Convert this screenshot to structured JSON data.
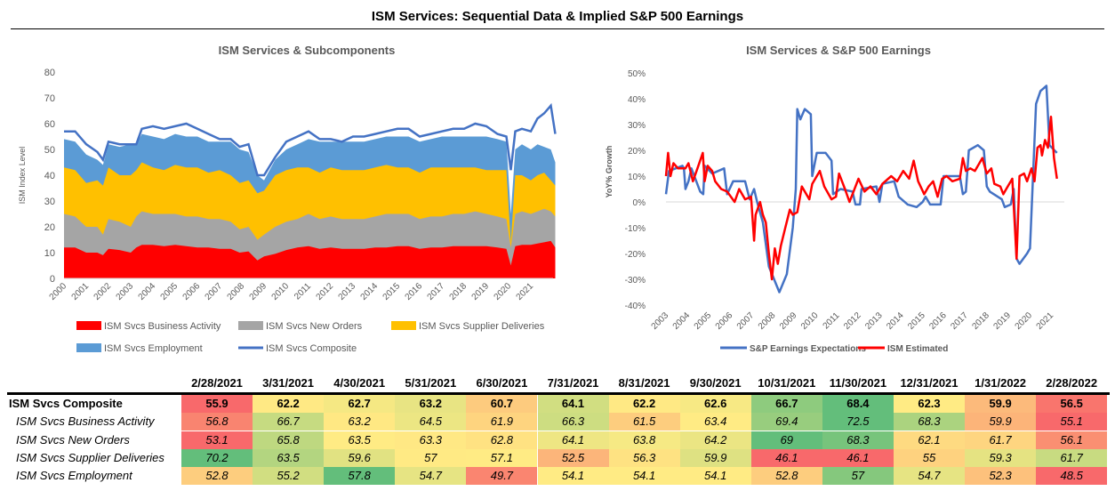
{
  "title": "ISM Services: Sequential Data & Implied S&P 500 Earnings",
  "chart_data": [
    {
      "type": "area",
      "stacked": true,
      "values_are_cumulative_stack_tops": true,
      "title": "ISM Services & Subcomponents",
      "ylabel": "ISM Index Level",
      "xlabel": "",
      "ylim": [
        0,
        80
      ],
      "yticks": [
        0,
        10,
        20,
        30,
        40,
        50,
        60,
        70,
        80
      ],
      "xticks": [
        "2000",
        "2001",
        "2002",
        "2003",
        "2004",
        "2005",
        "2006",
        "2007",
        "2008",
        "2009",
        "2010",
        "2011",
        "2012",
        "2013",
        "2014",
        "2015",
        "2016",
        "2017",
        "2018",
        "2019",
        "2020",
        "2021"
      ],
      "legend_position": "bottom",
      "x": [
        2000,
        2000.5,
        2001,
        2001.5,
        2001.75,
        2002,
        2002.5,
        2003,
        2003.25,
        2003.5,
        2004,
        2004.5,
        2005,
        2005.5,
        2006,
        2006.5,
        2007,
        2007.5,
        2007.9,
        2008.3,
        2008.7,
        2009,
        2009.5,
        2010,
        2010.5,
        2011,
        2011.5,
        2012,
        2012.5,
        2013,
        2013.5,
        2014,
        2014.5,
        2015,
        2015.5,
        2016,
        2016.5,
        2017,
        2017.5,
        2018,
        2018.5,
        2019,
        2019.5,
        2019.9,
        2020.1,
        2020.3,
        2020.6,
        2021,
        2021.3,
        2021.6,
        2021.9,
        2022.1
      ],
      "series": [
        {
          "name": "ISM Svcs Business Activity",
          "color": "#FF0000",
          "values": [
            12,
            12,
            10,
            10,
            9,
            11.5,
            11,
            10,
            12,
            13,
            13,
            12.5,
            13,
            12.5,
            12,
            12,
            11.5,
            11.5,
            10,
            10.5,
            7,
            8.5,
            9.5,
            11,
            12,
            12.5,
            11.5,
            12,
            11.5,
            11.5,
            11.5,
            12,
            12,
            12.5,
            12.5,
            11.5,
            12,
            12,
            12.5,
            12.5,
            12.5,
            12.5,
            12,
            11.5,
            5,
            12.5,
            13,
            13,
            13.5,
            14,
            14.5,
            12
          ]
        },
        {
          "name": "ISM Svcs New Orders",
          "color": "#A5A5A5",
          "values": [
            25,
            24,
            20,
            20,
            17,
            23,
            22,
            20,
            24,
            26,
            25,
            25,
            25,
            24,
            24,
            23,
            23,
            22,
            19,
            20,
            15,
            17,
            20,
            22,
            23,
            25,
            23,
            24,
            23,
            23,
            23,
            24,
            25,
            25,
            25,
            23,
            24,
            24,
            25,
            25,
            26,
            25,
            24,
            23,
            12,
            25,
            26,
            25,
            26,
            27,
            26,
            24
          ]
        },
        {
          "name": "ISM Svcs Supplier Deliveries",
          "color": "#FFC000",
          "values": [
            43,
            42,
            37,
            38,
            36,
            43,
            40,
            40,
            42,
            45,
            43,
            42,
            44,
            43,
            43,
            41,
            42,
            40,
            37,
            38,
            33,
            34,
            40,
            42,
            43,
            43,
            41,
            43,
            42,
            42,
            42,
            43,
            44,
            43,
            43,
            41,
            43,
            43,
            43,
            43,
            43,
            42,
            42,
            42,
            14,
            40,
            40,
            38,
            40,
            41,
            38,
            36
          ]
        },
        {
          "name": "ISM Svcs Employment",
          "color": "#5B9BD5",
          "values": [
            54,
            53,
            48,
            46,
            44,
            52,
            51,
            52,
            52,
            56,
            55,
            54,
            56,
            55,
            55,
            53,
            53,
            53,
            50,
            49,
            40,
            38,
            46,
            50,
            52,
            54,
            53,
            53,
            53,
            53,
            53,
            54,
            55,
            55,
            55,
            53,
            54,
            55,
            55,
            55,
            55,
            55,
            54,
            53,
            25,
            50,
            52,
            50,
            52,
            51,
            50,
            45
          ]
        },
        {
          "name": "ISM Svcs Composite",
          "color": "#4472C4",
          "type": "line",
          "values": [
            57,
            57,
            52,
            49,
            46,
            53,
            52,
            52,
            52,
            58,
            59,
            58,
            59,
            60,
            58,
            56,
            54,
            54,
            51,
            52,
            40,
            40,
            47,
            53,
            55,
            57,
            54,
            54,
            53,
            55,
            55,
            56,
            57,
            58,
            58,
            55,
            56,
            57,
            58,
            58,
            60,
            59,
            56,
            55,
            42,
            57,
            58,
            57,
            62,
            64,
            67,
            56
          ]
        }
      ]
    },
    {
      "type": "line",
      "title": "ISM Services & S&P 500 Earnings",
      "ylabel": "YoY% Growth",
      "xlabel": "",
      "ylim": [
        -40,
        50
      ],
      "yticks": [
        "-40%",
        "-30%",
        "-20%",
        "-10%",
        "0%",
        "10%",
        "20%",
        "30%",
        "40%",
        "50%"
      ],
      "xticks": [
        "2003",
        "2004",
        "2005",
        "2006",
        "2007",
        "2008",
        "2009",
        "2010",
        "2011",
        "2012",
        "2013",
        "2014",
        "2015",
        "2016",
        "2017",
        "2018",
        "2019",
        "2020",
        "2021"
      ],
      "legend_position": "bottom",
      "series": [
        {
          "name": "S&P Earnings Expectations",
          "color": "#4472C4",
          "x": [
            2003,
            2003.14,
            2003.77,
            2003.84,
            2003.91,
            2004.05,
            2004.19,
            2004.6,
            2004.74,
            2004.81,
            2005.16,
            2005.72,
            2005.86,
            2006.14,
            2006.7,
            2006.91,
            2007.12,
            2007.26,
            2007.53,
            2007.81,
            2008.3,
            2008.65,
            2008.93,
            2009.07,
            2009.14,
            2009.28,
            2009.49,
            2009.77,
            2009.84,
            2010.05,
            2010.46,
            2010.74,
            2010.81,
            2011.16,
            2011.72,
            2011.86,
            2012.07,
            2012.14,
            2012.84,
            2012.98,
            2013.12,
            2013.67,
            2013.88,
            2014.3,
            2014.72,
            2015,
            2015.14,
            2015.35,
            2015.84,
            2015.98,
            2016.74,
            2016.88,
            2017.02,
            2017.16,
            2017.58,
            2017.86,
            2018,
            2018.14,
            2018.7,
            2018.84,
            2019.12,
            2019.26,
            2019.39,
            2019.53,
            2019.88,
            2020.02,
            2020.16,
            2020.3,
            2020.51,
            2020.79,
            2020.93,
            2021.28
          ],
          "values": [
            3,
            12,
            14,
            13,
            5,
            8,
            13,
            4,
            3,
            14,
            11,
            13,
            3,
            8,
            8,
            1,
            5,
            0,
            -8,
            -25,
            -35,
            -28,
            -10,
            5,
            36,
            32,
            36,
            34,
            10,
            19,
            19,
            16,
            3,
            5,
            4,
            -1,
            -1,
            5,
            6,
            0,
            7,
            8,
            2,
            -1,
            -2,
            0,
            2,
            -1,
            -1,
            10,
            10,
            3,
            4,
            20,
            22,
            20,
            6,
            4,
            1,
            -2,
            -1,
            5,
            -22,
            -24,
            -20,
            -18,
            10,
            38,
            43,
            45,
            22,
            19
          ]
        },
        {
          "name": "ISM Estimated",
          "color": "#FF0000",
          "x": [
            2003,
            2003.1,
            2003.21,
            2003.35,
            2003.56,
            2003.91,
            2004.05,
            2004.26,
            2004.47,
            2004.72,
            2004.81,
            2004.95,
            2005.16,
            2005.3,
            2005.58,
            2005.86,
            2006.21,
            2006.42,
            2006.7,
            2006.98,
            2007.12,
            2007.19,
            2007.4,
            2007.53,
            2007.67,
            2007.81,
            2007.95,
            2008.09,
            2008.23,
            2008.37,
            2008.58,
            2008.79,
            2008.93,
            2009.14,
            2009.35,
            2009.56,
            2009.7,
            2009.84,
            2010.19,
            2010.4,
            2010.74,
            2010.95,
            2011.09,
            2011.37,
            2011.58,
            2011.72,
            2012,
            2012.28,
            2012.56,
            2012.84,
            2013.12,
            2013.53,
            2013.81,
            2014.09,
            2014.37,
            2014.58,
            2014.79,
            2015.07,
            2015.28,
            2015.49,
            2015.7,
            2015.91,
            2016.12,
            2016.39,
            2016.74,
            2016.88,
            2017.02,
            2017.23,
            2017.44,
            2017.79,
            2018,
            2018.21,
            2018.35,
            2018.63,
            2018.77,
            2018.91,
            2019.19,
            2019.39,
            2019.53,
            2019.74,
            2019.88,
            2020.09,
            2020.23,
            2020.37,
            2020.51,
            2020.58,
            2020.72,
            2020.86,
            2021,
            2021.14,
            2021.28
          ],
          "values": [
            10,
            19,
            10,
            15,
            13,
            13,
            15,
            8,
            13,
            19,
            8,
            14,
            12,
            8,
            5,
            4,
            0,
            5,
            1,
            2,
            -15,
            -5,
            0,
            -5,
            -8,
            -20,
            -30,
            -18,
            -24,
            -17,
            -10,
            -3,
            -5,
            -4,
            6,
            3,
            1,
            7,
            12,
            6,
            1,
            2,
            11,
            5,
            0,
            3,
            9,
            4,
            6,
            3,
            7,
            10,
            8,
            12,
            9,
            16,
            8,
            3,
            6,
            8,
            2,
            9,
            10,
            8,
            9,
            17,
            12,
            13,
            12,
            17,
            11,
            13,
            7,
            6,
            3,
            5,
            9,
            -22,
            10,
            11,
            8,
            13,
            8,
            21,
            22,
            18,
            24,
            21,
            33,
            17,
            9
          ]
        }
      ]
    }
  ],
  "legend_left": [
    "ISM Svcs Business Activity",
    "ISM Svcs New Orders",
    "ISM Svcs Supplier Deliveries",
    "ISM Svcs Employment",
    "ISM Svcs Composite"
  ],
  "legend_right": [
    "S&P Earnings Expectations",
    "ISM Estimated"
  ],
  "table": {
    "headers": [
      "2/28/2021",
      "3/31/2021",
      "4/30/2021",
      "5/31/2021",
      "6/30/2021",
      "7/31/2021",
      "8/31/2021",
      "9/30/2021",
      "10/31/2021",
      "11/30/2021",
      "12/31/2021",
      "1/31/2022",
      "2/28/2022"
    ],
    "rows": [
      {
        "label": "ISM Svcs Composite",
        "bold": true,
        "values": [
          "55.9",
          "62.2",
          "62.7",
          "63.2",
          "60.7",
          "64.1",
          "62.2",
          "62.6",
          "66.7",
          "68.4",
          "62.3",
          "59.9",
          "56.5"
        ]
      },
      {
        "label": "ISM Svcs Business Activity",
        "values": [
          "56.8",
          "66.7",
          "63.2",
          "64.5",
          "61.9",
          "66.3",
          "61.5",
          "63.4",
          "69.4",
          "72.5",
          "68.3",
          "59.9",
          "55.1"
        ]
      },
      {
        "label": "ISM Svcs New Orders",
        "values": [
          "53.1",
          "65.8",
          "63.5",
          "63.3",
          "62.8",
          "64.1",
          "63.8",
          "64.2",
          "69",
          "68.3",
          "62.1",
          "61.7",
          "56.1"
        ]
      },
      {
        "label": "ISM Svcs Supplier Deliveries",
        "values": [
          "70.2",
          "63.5",
          "59.6",
          "57",
          "57.1",
          "52.5",
          "56.3",
          "59.9",
          "46.1",
          "46.1",
          "55",
          "59.3",
          "61.7"
        ]
      },
      {
        "label": "ISM Svcs Employment",
        "values": [
          "52.8",
          "55.2",
          "57.8",
          "54.7",
          "49.7",
          "54.1",
          "54.1",
          "54.1",
          "52.8",
          "57",
          "54.7",
          "52.3",
          "48.5"
        ]
      }
    ],
    "scale_colors": {
      "low": "#F8696B",
      "mid": "#FFEB84",
      "high": "#63BE7B"
    }
  }
}
